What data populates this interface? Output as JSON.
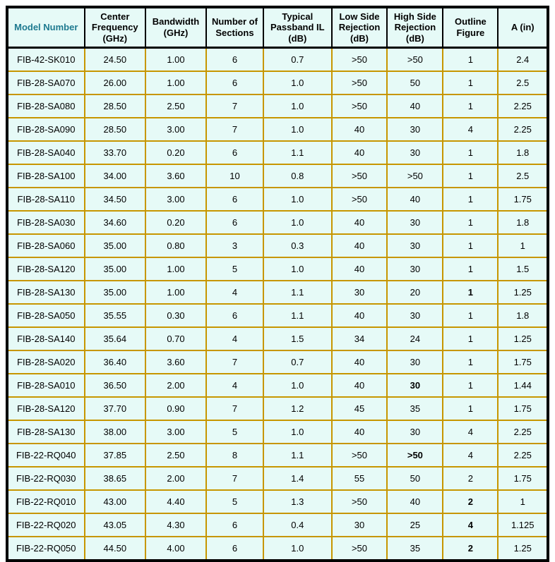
{
  "table": {
    "headers": [
      "Model Number",
      "Center Frequency (GHz)",
      "Bandwidth (GHz)",
      "Number of Sections",
      "Typical Passband IL (dB)",
      "Low Side Rejection (dB)",
      "High Side Rejection (dB)",
      "Outline Figure",
      "A (in)"
    ],
    "column_keys": [
      "model-number",
      "center-frequency",
      "bandwidth",
      "number-of-sections",
      "typical-passband-il",
      "low-side-rejection",
      "high-side-rejection",
      "outline-figure",
      "a-dimension"
    ],
    "rows": [
      [
        "FIB-42-SK010",
        "24.50",
        "1.00",
        "6",
        "0.7",
        ">50",
        ">50",
        "1",
        "2.4"
      ],
      [
        "FIB-28-SA070",
        "26.00",
        "1.00",
        "6",
        "1.0",
        ">50",
        "50",
        "1",
        "2.5"
      ],
      [
        "FIB-28-SA080",
        "28.50",
        "2.50",
        "7",
        "1.0",
        ">50",
        "40",
        "1",
        "2.25"
      ],
      [
        "FIB-28-SA090",
        "28.50",
        "3.00",
        "7",
        "1.0",
        "40",
        "30",
        "4",
        "2.25"
      ],
      [
        "FIB-28-SA040",
        "33.70",
        "0.20",
        "6",
        "1.1",
        "40",
        "30",
        "1",
        "1.8"
      ],
      [
        "FIB-28-SA100",
        "34.00",
        "3.60",
        "10",
        "0.8",
        ">50",
        ">50",
        "1",
        "2.5"
      ],
      [
        "FIB-28-SA110",
        "34.50",
        "3.00",
        "6",
        "1.0",
        ">50",
        "40",
        "1",
        "1.75"
      ],
      [
        "FIB-28-SA030",
        "34.60",
        "0.20",
        "6",
        "1.0",
        "40",
        "30",
        "1",
        "1.8"
      ],
      [
        "FIB-28-SA060",
        "35.00",
        "0.80",
        "3",
        "0.3",
        "40",
        "30",
        "1",
        "1"
      ],
      [
        "FIB-28-SA120",
        "35.00",
        "1.00",
        "5",
        "1.0",
        "40",
        "30",
        "1",
        "1.5"
      ],
      [
        "FIB-28-SA130",
        "35.00",
        "1.00",
        "4",
        "1.1",
        "30",
        "20",
        "1",
        "1.25"
      ],
      [
        "FIB-28-SA050",
        "35.55",
        "0.30",
        "6",
        "1.1",
        "40",
        "30",
        "1",
        "1.8"
      ],
      [
        "FIB-28-SA140",
        "35.64",
        "0.70",
        "4",
        "1.5",
        "34",
        "24",
        "1",
        "1.25"
      ],
      [
        "FIB-28-SA020",
        "36.40",
        "3.60",
        "7",
        "0.7",
        "40",
        "30",
        "1",
        "1.75"
      ],
      [
        "FIB-28-SA010",
        "36.50",
        "2.00",
        "4",
        "1.0",
        "40",
        "30",
        "1",
        "1.44"
      ],
      [
        "FIB-28-SA120",
        "37.70",
        "0.90",
        "7",
        "1.2",
        "45",
        "35",
        "1",
        "1.75"
      ],
      [
        "FIB-28-SA130",
        "38.00",
        "3.00",
        "5",
        "1.0",
        "40",
        "30",
        "4",
        "2.25"
      ],
      [
        "FIB-22-RQ040",
        "37.85",
        "2.50",
        "8",
        "1.1",
        ">50",
        ">50",
        "4",
        "2.25"
      ],
      [
        "FIB-22-RQ030",
        "38.65",
        "2.00",
        "7",
        "1.4",
        "55",
        "50",
        "2",
        "1.75"
      ],
      [
        "FIB-22-RQ010",
        "43.00",
        "4.40",
        "5",
        "1.3",
        ">50",
        "40",
        "2",
        "1"
      ],
      [
        "FIB-22-RQ020",
        "43.05",
        "4.30",
        "6",
        "0.4",
        "30",
        "25",
        "4",
        "1.125"
      ],
      [
        "FIB-22-RQ050",
        "44.50",
        "4.00",
        "6",
        "1.0",
        ">50",
        "35",
        "2",
        "1.25"
      ]
    ],
    "bold_cells": [
      [
        10,
        7
      ],
      [
        14,
        6
      ],
      [
        17,
        6
      ],
      [
        19,
        7
      ],
      [
        20,
        7
      ],
      [
        21,
        7
      ]
    ],
    "colors": {
      "cell_background": "#e6faf7",
      "grid_line": "#c79600",
      "header_border": "#000000",
      "outer_border": "#000000",
      "model_number_header_text": "#1e7a90",
      "body_text": "#000000"
    }
  }
}
